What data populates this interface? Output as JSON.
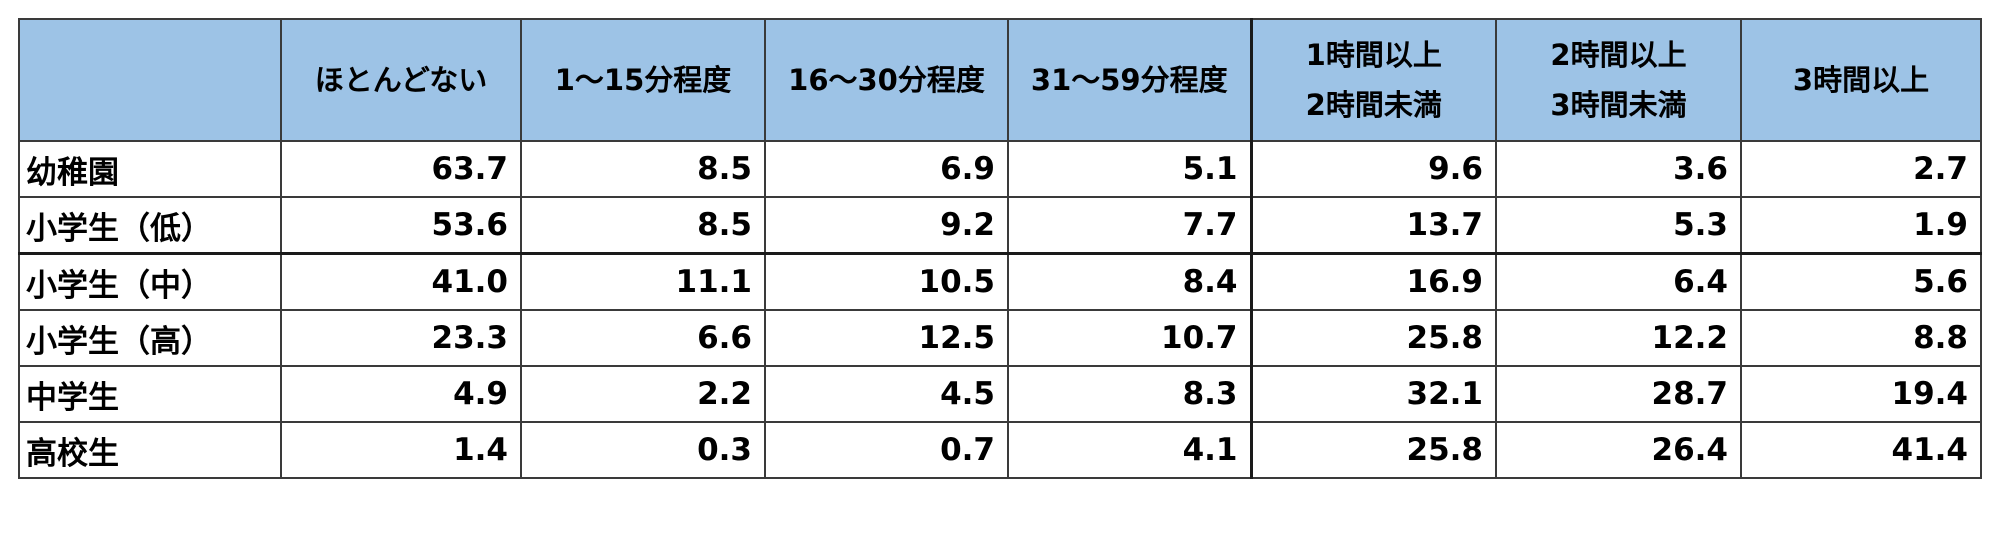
{
  "table": {
    "corner": "",
    "headers": [
      {
        "line1": "ほとんどない",
        "line2": ""
      },
      {
        "line1": "1～15分程度",
        "line2": ""
      },
      {
        "line1": "16～30分程度",
        "line2": ""
      },
      {
        "line1": "31～59分程度",
        "line2": ""
      },
      {
        "line1": "1時間以上",
        "line2": "2時間未満"
      },
      {
        "line1": "2時間以上",
        "line2": "3時間未満"
      },
      {
        "line1": "3時間以上",
        "line2": ""
      }
    ],
    "rows": [
      {
        "label": "幼稚園",
        "values": [
          "63.7",
          "8.5",
          "6.9",
          "5.1",
          "9.6",
          "3.6",
          "2.7"
        ]
      },
      {
        "label": "小学生（低）",
        "values": [
          "53.6",
          "8.5",
          "9.2",
          "7.7",
          "13.7",
          "5.3",
          "1.9"
        ]
      },
      {
        "label": "小学生（中）",
        "values": [
          "41.0",
          "11.1",
          "10.5",
          "8.4",
          "16.9",
          "6.4",
          "5.6"
        ]
      },
      {
        "label": "小学生（高）",
        "values": [
          "23.3",
          "6.6",
          "12.5",
          "10.7",
          "25.8",
          "12.2",
          "8.8"
        ]
      },
      {
        "label": "中学生",
        "values": [
          "4.9",
          "2.2",
          "4.5",
          "8.3",
          "32.1",
          "28.7",
          "19.4"
        ]
      },
      {
        "label": "高校生",
        "values": [
          "1.4",
          "0.3",
          "0.7",
          "4.1",
          "25.8",
          "26.4",
          "41.4"
        ]
      }
    ],
    "header_color": "#9dc3e6",
    "border_color": "#3a3a3a"
  }
}
